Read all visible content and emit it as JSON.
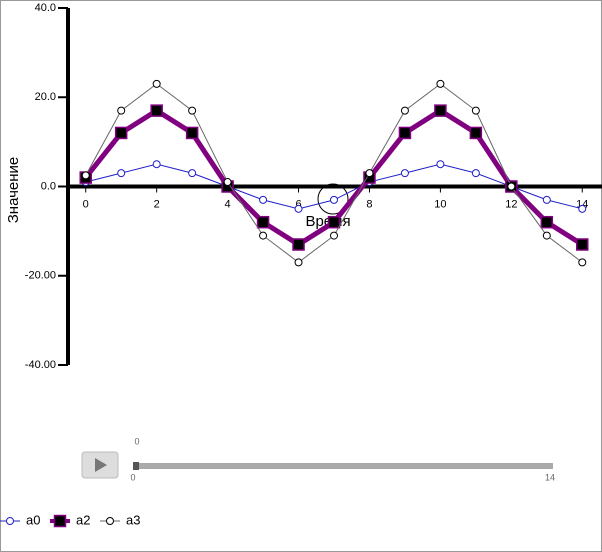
{
  "chart_data": {
    "type": "line",
    "x_label": "Время",
    "y_label": "Значение",
    "x": [
      0,
      1,
      2,
      3,
      4,
      5,
      6,
      7,
      8,
      9,
      10,
      11,
      12,
      13,
      14
    ],
    "series": [
      {
        "name": "a0",
        "color": "#2020c8",
        "marker": "circle",
        "values": [
          1,
          3,
          5,
          3,
          0,
          -3,
          -5,
          -3,
          1,
          3,
          5,
          3,
          0,
          -3,
          -5
        ]
      },
      {
        "name": "a2",
        "color": "#800080",
        "marker": "square",
        "values": [
          2,
          12,
          17,
          12,
          0,
          -8,
          -13,
          -8,
          2,
          12,
          17,
          12,
          0,
          -8,
          -13
        ]
      },
      {
        "name": "a3",
        "color": "#666666",
        "marker": "circle",
        "values": [
          2.5,
          17,
          23,
          17,
          1,
          -11,
          -17,
          -11,
          3,
          17,
          23,
          17,
          0,
          -11,
          -17
        ]
      }
    ],
    "xlim": [
      -0.5,
      14.5
    ],
    "xticks": [
      0,
      2,
      4,
      6,
      8,
      10,
      12,
      14
    ],
    "ylim": [
      -40,
      40
    ],
    "yticks": [
      {
        "value": 40,
        "label": "40.0"
      },
      {
        "value": 20,
        "label": "20.0"
      },
      {
        "value": 0,
        "label": "0.0"
      },
      {
        "value": -20,
        "label": "-20.00"
      },
      {
        "value": -40,
        "label": "-40.00"
      }
    ],
    "legend": "bottom-left",
    "slider": {
      "value": 0,
      "min": 0,
      "max": 14
    }
  }
}
